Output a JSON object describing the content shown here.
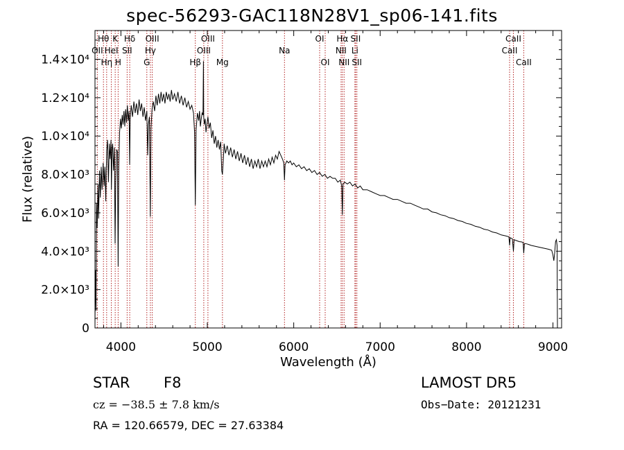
{
  "chart_data": {
    "type": "line",
    "title": "spec-56293-GAC118N28V1_sp06-141.fits",
    "xlabel": "Wavelength (Å)",
    "ylabel": "Flux (relative)",
    "xlim": [
      3700,
      9100
    ],
    "ylim": [
      0,
      15500
    ],
    "x_ticks": [
      4000,
      5000,
      6000,
      7000,
      8000,
      9000
    ],
    "y_ticks": [
      {
        "value": 0,
        "label": "0"
      },
      {
        "value": 2000,
        "label": "2.0×10³"
      },
      {
        "value": 4000,
        "label": "4.0×10³"
      },
      {
        "value": 6000,
        "label": "6.0×10³"
      },
      {
        "value": 8000,
        "label": "8.0×10³"
      },
      {
        "value": 10000,
        "label": "1.0×10⁴"
      },
      {
        "value": 12000,
        "label": "1.2×10⁴"
      },
      {
        "value": 14000,
        "label": "1.4×10⁴"
      }
    ],
    "series": [
      {
        "values": [
          [
            3700,
            200
          ],
          [
            3705,
            3000
          ],
          [
            3712,
            900
          ],
          [
            3718,
            6500
          ],
          [
            3725,
            5200
          ],
          [
            3735,
            7500
          ],
          [
            3742,
            5700
          ],
          [
            3752,
            8200
          ],
          [
            3762,
            6800
          ],
          [
            3772,
            8400
          ],
          [
            3782,
            7200
          ],
          [
            3795,
            8600
          ],
          [
            3805,
            7400
          ],
          [
            3815,
            8400
          ],
          [
            3825,
            6600
          ],
          [
            3835,
            9200
          ],
          [
            3845,
            9800
          ],
          [
            3856,
            7600
          ],
          [
            3866,
            9600
          ],
          [
            3875,
            8800
          ],
          [
            3885,
            9800
          ],
          [
            3890,
            7200
          ],
          [
            3898,
            9400
          ],
          [
            3905,
            9600
          ],
          [
            3915,
            8200
          ],
          [
            3925,
            9400
          ],
          [
            3933,
            4400
          ],
          [
            3940,
            7600
          ],
          [
            3950,
            9300
          ],
          [
            3960,
            9200
          ],
          [
            3968,
            3200
          ],
          [
            3975,
            8400
          ],
          [
            3985,
            10200
          ],
          [
            3995,
            10900
          ],
          [
            4005,
            10400
          ],
          [
            4015,
            11100
          ],
          [
            4025,
            10600
          ],
          [
            4035,
            11300
          ],
          [
            4045,
            10500
          ],
          [
            4055,
            11400
          ],
          [
            4065,
            10700
          ],
          [
            4075,
            11600
          ],
          [
            4085,
            10800
          ],
          [
            4095,
            11300
          ],
          [
            4101,
            8500
          ],
          [
            4108,
            10900
          ],
          [
            4120,
            11600
          ],
          [
            4135,
            11000
          ],
          [
            4150,
            11800
          ],
          [
            4165,
            11200
          ],
          [
            4180,
            11700
          ],
          [
            4195,
            11100
          ],
          [
            4210,
            11900
          ],
          [
            4225,
            11300
          ],
          [
            4240,
            11700
          ],
          [
            4255,
            11000
          ],
          [
            4270,
            11500
          ],
          [
            4285,
            10800
          ],
          [
            4300,
            11300
          ],
          [
            4310,
            9000
          ],
          [
            4318,
            10600
          ],
          [
            4330,
            11000
          ],
          [
            4340,
            5800
          ],
          [
            4348,
            10400
          ],
          [
            4360,
            11400
          ],
          [
            4375,
            11800
          ],
          [
            4390,
            11300
          ],
          [
            4405,
            12100
          ],
          [
            4420,
            11600
          ],
          [
            4435,
            12200
          ],
          [
            4450,
            11700
          ],
          [
            4465,
            12300
          ],
          [
            4480,
            11800
          ],
          [
            4495,
            12200
          ],
          [
            4510,
            11700
          ],
          [
            4525,
            12300
          ],
          [
            4540,
            11900
          ],
          [
            4555,
            12200
          ],
          [
            4570,
            11800
          ],
          [
            4585,
            12400
          ],
          [
            4600,
            11900
          ],
          [
            4620,
            12200
          ],
          [
            4640,
            11800
          ],
          [
            4660,
            12300
          ],
          [
            4680,
            11700
          ],
          [
            4700,
            12100
          ],
          [
            4720,
            11600
          ],
          [
            4740,
            12000
          ],
          [
            4760,
            11500
          ],
          [
            4780,
            11800
          ],
          [
            4800,
            11400
          ],
          [
            4820,
            11600
          ],
          [
            4840,
            11200
          ],
          [
            4852,
            10200
          ],
          [
            4861,
            6400
          ],
          [
            4870,
            10300
          ],
          [
            4885,
            11200
          ],
          [
            4900,
            10800
          ],
          [
            4910,
            11300
          ],
          [
            4920,
            10500
          ],
          [
            4930,
            10900
          ],
          [
            4940,
            11200
          ],
          [
            4950,
            11100
          ],
          [
            4955,
            13900
          ],
          [
            4958,
            11000
          ],
          [
            4965,
            10600
          ],
          [
            4975,
            10900
          ],
          [
            4985,
            10200
          ],
          [
            4995,
            10600
          ],
          [
            5007,
            11000
          ],
          [
            5020,
            10400
          ],
          [
            5035,
            10700
          ],
          [
            5050,
            9900
          ],
          [
            5065,
            10300
          ],
          [
            5080,
            9600
          ],
          [
            5095,
            10000
          ],
          [
            5110,
            9400
          ],
          [
            5125,
            9800
          ],
          [
            5140,
            9300
          ],
          [
            5155,
            9700
          ],
          [
            5167,
            8200
          ],
          [
            5175,
            8000
          ],
          [
            5183,
            8600
          ],
          [
            5195,
            9600
          ],
          [
            5210,
            9100
          ],
          [
            5230,
            9500
          ],
          [
            5250,
            9000
          ],
          [
            5270,
            9400
          ],
          [
            5290,
            8900
          ],
          [
            5310,
            9300
          ],
          [
            5330,
            8800
          ],
          [
            5350,
            9200
          ],
          [
            5370,
            8700
          ],
          [
            5390,
            9100
          ],
          [
            5410,
            8600
          ],
          [
            5430,
            9000
          ],
          [
            5450,
            8500
          ],
          [
            5470,
            8900
          ],
          [
            5490,
            8400
          ],
          [
            5510,
            8800
          ],
          [
            5530,
            8300
          ],
          [
            5550,
            8700
          ],
          [
            5570,
            8400
          ],
          [
            5590,
            8800
          ],
          [
            5610,
            8300
          ],
          [
            5630,
            8700
          ],
          [
            5650,
            8400
          ],
          [
            5670,
            8700
          ],
          [
            5690,
            8400
          ],
          [
            5710,
            8800
          ],
          [
            5730,
            8500
          ],
          [
            5750,
            8900
          ],
          [
            5770,
            8600
          ],
          [
            5790,
            9000
          ],
          [
            5810,
            8800
          ],
          [
            5830,
            9200
          ],
          [
            5850,
            9000
          ],
          [
            5870,
            8800
          ],
          [
            5885,
            8600
          ],
          [
            5893,
            7700
          ],
          [
            5900,
            8500
          ],
          [
            5920,
            8700
          ],
          [
            5940,
            8600
          ],
          [
            5960,
            8700
          ],
          [
            5980,
            8500
          ],
          [
            6000,
            8600
          ],
          [
            6030,
            8400
          ],
          [
            6060,
            8500
          ],
          [
            6090,
            8300
          ],
          [
            6120,
            8400
          ],
          [
            6150,
            8200
          ],
          [
            6180,
            8300
          ],
          [
            6210,
            8100
          ],
          [
            6240,
            8200
          ],
          [
            6270,
            8000
          ],
          [
            6300,
            8100
          ],
          [
            6330,
            7900
          ],
          [
            6360,
            8000
          ],
          [
            6390,
            7800
          ],
          [
            6420,
            7900
          ],
          [
            6450,
            7800
          ],
          [
            6480,
            7800
          ],
          [
            6510,
            7600
          ],
          [
            6540,
            7700
          ],
          [
            6555,
            7400
          ],
          [
            6563,
            5900
          ],
          [
            6570,
            7500
          ],
          [
            6590,
            7600
          ],
          [
            6620,
            7500
          ],
          [
            6650,
            7600
          ],
          [
            6680,
            7400
          ],
          [
            6710,
            7500
          ],
          [
            6740,
            7300
          ],
          [
            6770,
            7400
          ],
          [
            6800,
            7200
          ],
          [
            6850,
            7200
          ],
          [
            6900,
            7100
          ],
          [
            6950,
            7000
          ],
          [
            7000,
            6900
          ],
          [
            7050,
            6900
          ],
          [
            7100,
            6800
          ],
          [
            7150,
            6700
          ],
          [
            7200,
            6700
          ],
          [
            7250,
            6600
          ],
          [
            7300,
            6500
          ],
          [
            7350,
            6500
          ],
          [
            7400,
            6400
          ],
          [
            7450,
            6300
          ],
          [
            7500,
            6200
          ],
          [
            7550,
            6200
          ],
          [
            7600,
            6050
          ],
          [
            7650,
            6000
          ],
          [
            7700,
            5900
          ],
          [
            7750,
            5850
          ],
          [
            7800,
            5750
          ],
          [
            7850,
            5700
          ],
          [
            7900,
            5600
          ],
          [
            7950,
            5550
          ],
          [
            8000,
            5450
          ],
          [
            8050,
            5400
          ],
          [
            8100,
            5300
          ],
          [
            8150,
            5250
          ],
          [
            8200,
            5150
          ],
          [
            8250,
            5100
          ],
          [
            8300,
            5000
          ],
          [
            8350,
            4950
          ],
          [
            8400,
            4850
          ],
          [
            8450,
            4800
          ],
          [
            8490,
            4750
          ],
          [
            8498,
            4300
          ],
          [
            8505,
            4700
          ],
          [
            8530,
            4650
          ],
          [
            8542,
            4000
          ],
          [
            8550,
            4600
          ],
          [
            8580,
            4550
          ],
          [
            8610,
            4500
          ],
          [
            8640,
            4480
          ],
          [
            8655,
            4450
          ],
          [
            8662,
            3900
          ],
          [
            8670,
            4400
          ],
          [
            8700,
            4380
          ],
          [
            8750,
            4300
          ],
          [
            8800,
            4250
          ],
          [
            8850,
            4200
          ],
          [
            8900,
            4150
          ],
          [
            8950,
            4100
          ],
          [
            8985,
            4050
          ],
          [
            9000,
            3800
          ],
          [
            9010,
            3500
          ],
          [
            9020,
            3900
          ],
          [
            9030,
            4500
          ],
          [
            9040,
            4600
          ],
          [
            9048,
            4300
          ],
          [
            9052,
            0
          ]
        ]
      }
    ],
    "lines": [
      {
        "x": 3727,
        "label": "OII",
        "row": 1
      },
      {
        "x": 3798,
        "label": "Hθ",
        "row": 0
      },
      {
        "x": 3835,
        "label": "Hη",
        "row": 2
      },
      {
        "x": 3889,
        "label": "HeI",
        "row": 1
      },
      {
        "x": 3934,
        "label": "K",
        "row": 0
      },
      {
        "x": 3968,
        "label": "H",
        "row": 2
      },
      {
        "x": 4072,
        "label": "SII",
        "row": 1
      },
      {
        "x": 4102,
        "label": "Hδ",
        "row": 0
      },
      {
        "x": 4300,
        "label": "G",
        "row": 2
      },
      {
        "x": 4341,
        "label": "Hγ",
        "row": 1
      },
      {
        "x": 4363,
        "label": "OIII",
        "row": 0
      },
      {
        "x": 4861,
        "label": "Hβ",
        "row": 2
      },
      {
        "x": 4959,
        "label": "OIII",
        "row": 1
      },
      {
        "x": 5007,
        "label": "OIII",
        "row": 0
      },
      {
        "x": 5175,
        "label": "Mg",
        "row": 2
      },
      {
        "x": 5893,
        "label": "Na",
        "row": 1
      },
      {
        "x": 6300,
        "label": "OI",
        "row": 0
      },
      {
        "x": 6364,
        "label": "OI",
        "row": 2
      },
      {
        "x": 6548,
        "label": "NII",
        "row": 1
      },
      {
        "x": 6563,
        "label": "Hα",
        "row": 0
      },
      {
        "x": 6583,
        "label": "NII",
        "row": 2
      },
      {
        "x": 6708,
        "label": "Li",
        "row": 1
      },
      {
        "x": 6716,
        "label": "SII",
        "row": 0
      },
      {
        "x": 6731,
        "label": "SII",
        "row": 2
      },
      {
        "x": 8498,
        "label": "CaII",
        "row": 1
      },
      {
        "x": 8542,
        "label": "CaII",
        "row": 0
      },
      {
        "x": 8662,
        "label": "CaII",
        "row": 2
      }
    ],
    "grid": false,
    "line_color": "#000000",
    "marker_color": "#b22222"
  },
  "info": {
    "class": "STAR",
    "subclass": "F8",
    "cz": "cz = −38.5 ± 7.8 km/s",
    "coords": "RA = 120.66579, DEC =  27.63384",
    "survey": "LAMOST DR5",
    "obs_date": "Obs−Date: 20121231"
  }
}
